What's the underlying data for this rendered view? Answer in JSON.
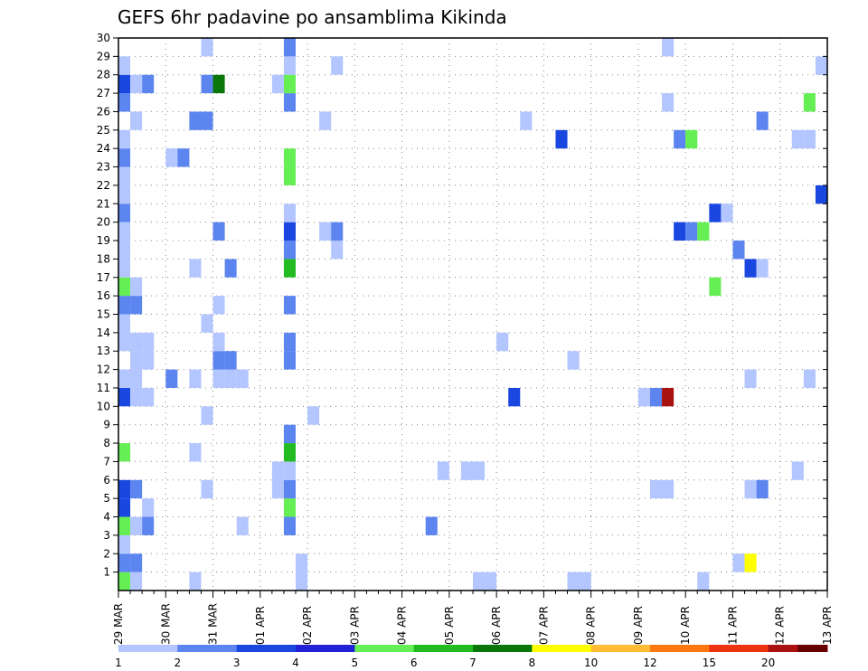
{
  "chart_data": {
    "type": "heatmap",
    "title": "GEFS 6hr padavine po ansamblima Kikinda",
    "xlabel": "",
    "ylabel": "",
    "y_ticks": [
      1,
      2,
      3,
      4,
      5,
      6,
      7,
      8,
      9,
      10,
      11,
      12,
      13,
      14,
      15,
      16,
      17,
      18,
      19,
      20,
      21,
      22,
      23,
      24,
      25,
      26,
      27,
      28,
      29,
      30
    ],
    "y_range": [
      0,
      30
    ],
    "x_ticks": [
      "29 MAR",
      "30 MAR",
      "31 MAR",
      "01 APR",
      "02 APR",
      "03 APR",
      "04 APR",
      "05 APR",
      "06 APR",
      "07 APR",
      "08 APR",
      "09 APR",
      "10 APR",
      "11 APR",
      "12 APR",
      "13 APR"
    ],
    "x_range": [
      0,
      60
    ],
    "x_unit": "6-hour step from 29 MAR 00Z",
    "grid": true,
    "legend_position": "bottom",
    "colorbar": {
      "labels": [
        "1",
        "2",
        "3",
        "4",
        "5",
        "6",
        "7",
        "8",
        "10",
        "12",
        "15",
        "20"
      ],
      "colors": [
        "#b3c6ff",
        "#5c85f0",
        "#1a47e0",
        "#2121d6",
        "#66ee55",
        "#22bb22",
        "#0a770a",
        "#ffff00",
        "#ffbb33",
        "#ff7711",
        "#ee3311",
        "#aa1111",
        "#660000"
      ]
    },
    "cells": [
      [
        0.5,
        0,
        4
      ],
      [
        1.5,
        0,
        0
      ],
      [
        39.5,
        0,
        0
      ],
      [
        30.5,
        0,
        0
      ],
      [
        31.5,
        0,
        0
      ],
      [
        38.5,
        0,
        0
      ],
      [
        39.5,
        0,
        0
      ],
      [
        15.5,
        0,
        0
      ],
      [
        6.5,
        0,
        0
      ],
      [
        49.5,
        0,
        0
      ],
      [
        0.5,
        1,
        1
      ],
      [
        1.5,
        1,
        1
      ],
      [
        15.5,
        1,
        0
      ],
      [
        52.5,
        1,
        0
      ],
      [
        53.5,
        1,
        7
      ],
      [
        0.5,
        2,
        0
      ],
      [
        0.5,
        3,
        4
      ],
      [
        1.5,
        3,
        0
      ],
      [
        2.5,
        3,
        1
      ],
      [
        10.5,
        3,
        0
      ],
      [
        14.5,
        3,
        1
      ],
      [
        26.5,
        3,
        1
      ],
      [
        0.5,
        4,
        2
      ],
      [
        2.5,
        4,
        0
      ],
      [
        14.5,
        4,
        4
      ],
      [
        0.5,
        5,
        2
      ],
      [
        1.5,
        5,
        1
      ],
      [
        7.5,
        5,
        0
      ],
      [
        13.5,
        5,
        0
      ],
      [
        14.5,
        5,
        1
      ],
      [
        45.5,
        5,
        0
      ],
      [
        46.5,
        5,
        0
      ],
      [
        53.5,
        5,
        0
      ],
      [
        54.5,
        5,
        1
      ],
      [
        13.5,
        6,
        0
      ],
      [
        14.5,
        6,
        0
      ],
      [
        27.5,
        6,
        0
      ],
      [
        29.5,
        6,
        0
      ],
      [
        30.5,
        6,
        0
      ],
      [
        57.5,
        6,
        0
      ],
      [
        0.5,
        7,
        4
      ],
      [
        6.5,
        7,
        0
      ],
      [
        14.5,
        7,
        5
      ],
      [
        14.5,
        8,
        1
      ],
      [
        7.5,
        9,
        0
      ],
      [
        16.5,
        9,
        0
      ],
      [
        0.5,
        10,
        2
      ],
      [
        1.5,
        10,
        0
      ],
      [
        2.5,
        10,
        0
      ],
      [
        33.5,
        10,
        2
      ],
      [
        44.5,
        10,
        0
      ],
      [
        45.5,
        10,
        1
      ],
      [
        46.5,
        10,
        11
      ],
      [
        0.5,
        11,
        0
      ],
      [
        1.5,
        11,
        0
      ],
      [
        4.5,
        11,
        1
      ],
      [
        6.5,
        11,
        0
      ],
      [
        8.5,
        11,
        0
      ],
      [
        9.5,
        11,
        0
      ],
      [
        10.5,
        11,
        0
      ],
      [
        53.5,
        11,
        0
      ],
      [
        58.5,
        11,
        0
      ],
      [
        1.5,
        12,
        0
      ],
      [
        2.5,
        12,
        0
      ],
      [
        8.5,
        12,
        1
      ],
      [
        9.5,
        12,
        1
      ],
      [
        14.5,
        12,
        1
      ],
      [
        38.5,
        12,
        0
      ],
      [
        0.5,
        13,
        0
      ],
      [
        1.5,
        13,
        0
      ],
      [
        2.5,
        13,
        0
      ],
      [
        8.5,
        13,
        0
      ],
      [
        14.5,
        13,
        1
      ],
      [
        32.5,
        13,
        0
      ],
      [
        0.5,
        14,
        0
      ],
      [
        7.5,
        14,
        0
      ],
      [
        0.5,
        15,
        1
      ],
      [
        1.5,
        15,
        1
      ],
      [
        8.5,
        15,
        0
      ],
      [
        14.5,
        15,
        1
      ],
      [
        0.5,
        16,
        4
      ],
      [
        1.5,
        16,
        0
      ],
      [
        50.5,
        16,
        4
      ],
      [
        0.5,
        17,
        0
      ],
      [
        6.5,
        17,
        0
      ],
      [
        9.5,
        17,
        1
      ],
      [
        14.5,
        17,
        5
      ],
      [
        53.5,
        17,
        2
      ],
      [
        54.5,
        17,
        0
      ],
      [
        0.5,
        18,
        0
      ],
      [
        14.5,
        18,
        1
      ],
      [
        18.5,
        18,
        0
      ],
      [
        52.5,
        18,
        1
      ],
      [
        0.5,
        19,
        0
      ],
      [
        8.5,
        19,
        1
      ],
      [
        14.5,
        19,
        2
      ],
      [
        17.5,
        19,
        0
      ],
      [
        18.5,
        19,
        1
      ],
      [
        47.5,
        19,
        2
      ],
      [
        48.5,
        19,
        1
      ],
      [
        49.5,
        19,
        4
      ],
      [
        0.5,
        20,
        1
      ],
      [
        14.5,
        20,
        0
      ],
      [
        50.5,
        20,
        2
      ],
      [
        51.5,
        20,
        0
      ],
      [
        0.5,
        21,
        0
      ],
      [
        59.5,
        21,
        2
      ],
      [
        0.5,
        22,
        0
      ],
      [
        14.5,
        22,
        4
      ],
      [
        0.5,
        23,
        1
      ],
      [
        4.5,
        23,
        0
      ],
      [
        5.5,
        23,
        1
      ],
      [
        14.5,
        23,
        4
      ],
      [
        0.5,
        24,
        0
      ],
      [
        37.5,
        24,
        2
      ],
      [
        47.5,
        24,
        1
      ],
      [
        48.5,
        24,
        4
      ],
      [
        57.5,
        24,
        0
      ],
      [
        58.5,
        24,
        0
      ],
      [
        1.5,
        25,
        0
      ],
      [
        6.5,
        25,
        1
      ],
      [
        7.5,
        25,
        1
      ],
      [
        17.5,
        25,
        0
      ],
      [
        34.5,
        25,
        0
      ],
      [
        54.5,
        25,
        1
      ],
      [
        0.5,
        26,
        1
      ],
      [
        14.5,
        26,
        1
      ],
      [
        46.5,
        26,
        0
      ],
      [
        58.5,
        26,
        4
      ],
      [
        0.5,
        27,
        2
      ],
      [
        1.5,
        27,
        0
      ],
      [
        2.5,
        27,
        1
      ],
      [
        7.5,
        27,
        1
      ],
      [
        8.5,
        27,
        6
      ],
      [
        13.5,
        27,
        0
      ],
      [
        14.5,
        27,
        4
      ],
      [
        0.5,
        28,
        0
      ],
      [
        14.5,
        28,
        0
      ],
      [
        18.5,
        28,
        0
      ],
      [
        59.5,
        28,
        0
      ],
      [
        7.5,
        29,
        0
      ],
      [
        14.5,
        29,
        1
      ],
      [
        46.5,
        29,
        0
      ]
    ]
  }
}
